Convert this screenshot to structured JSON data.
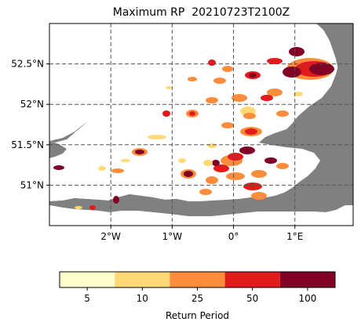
{
  "map": {
    "title": "Maximum RP  20210723T2100Z",
    "lat_ticks": [
      {
        "value": 52.5,
        "label": "52.5°N"
      },
      {
        "value": 52.0,
        "label": "52°N"
      },
      {
        "value": 51.5,
        "label": "51.5°N"
      },
      {
        "value": 51.0,
        "label": "51°N"
      }
    ],
    "lon_ticks": [
      {
        "value": -2,
        "label": "2°W"
      },
      {
        "value": -1,
        "label": "1°W"
      },
      {
        "value": 0,
        "label": "0°"
      },
      {
        "value": 1,
        "label": "1°E"
      }
    ],
    "extent": {
      "lon": [
        -3.0,
        1.95
      ],
      "lat": [
        50.5,
        53.0
      ]
    },
    "gridlines": "dashed",
    "land_color": "#ffffff",
    "sea_color": "#808080"
  },
  "colorbar": {
    "label": "Return Period",
    "classes": [
      {
        "value": "5",
        "color": "#ffffcc"
      },
      {
        "value": "10",
        "color": "#fed976"
      },
      {
        "value": "25",
        "color": "#fd8d3c"
      },
      {
        "value": "50",
        "color": "#e31a1c"
      },
      {
        "value": "100",
        "color": "#800026"
      }
    ]
  }
}
